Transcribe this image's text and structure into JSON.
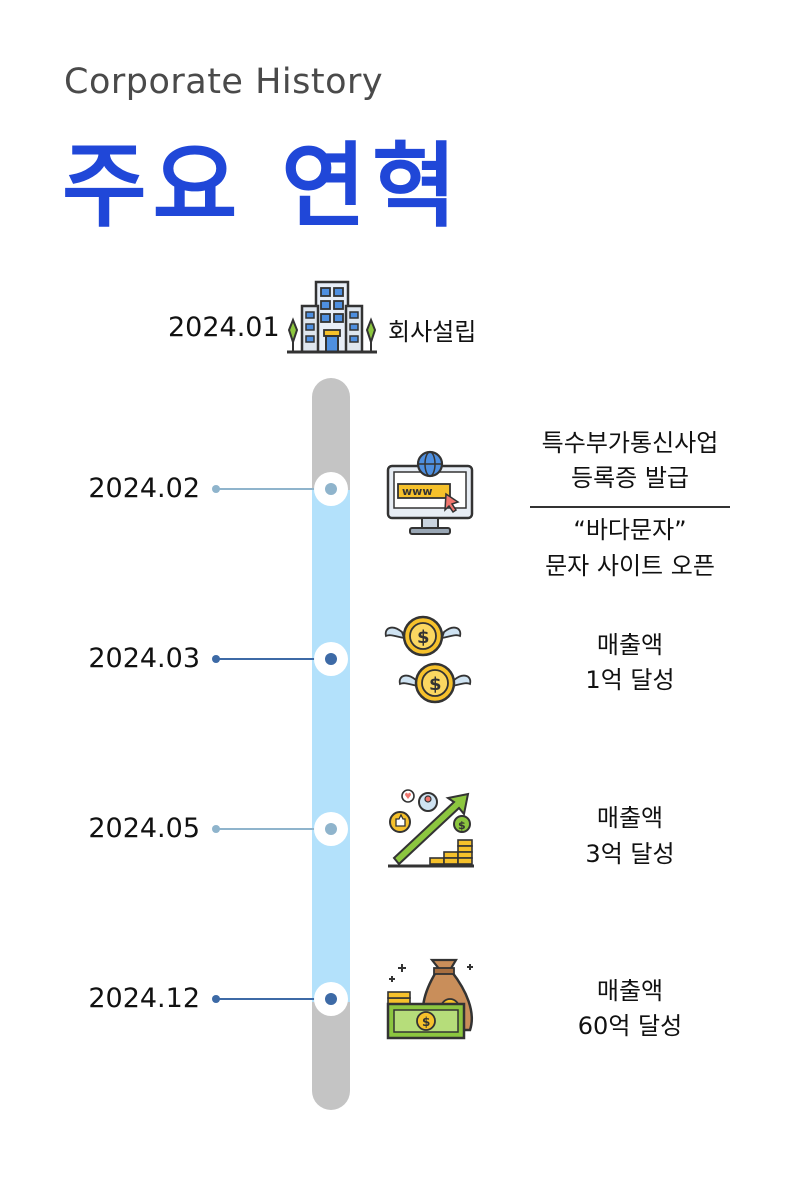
{
  "header": {
    "subtitle": "Corporate History",
    "title": "주요 연혁"
  },
  "founding": {
    "date": "2024.01",
    "label": "회사설립",
    "icon": "office-building-icon"
  },
  "milestones": [
    {
      "date": "2024.02",
      "icon": "www-monitor-icon",
      "lines": [
        "특수부가통신사업",
        "등록증 발급"
      ],
      "lines2": [
        "“바다문자”",
        "문자 사이트 오픈"
      ]
    },
    {
      "date": "2024.03",
      "icon": "flying-coins-icon",
      "lines": [
        "매출액",
        "1억 달성"
      ]
    },
    {
      "date": "2024.05",
      "icon": "growth-chart-icon",
      "lines": [
        "매출액",
        "3억 달성"
      ]
    },
    {
      "date": "2024.12",
      "icon": "money-bag-icon",
      "lines": [
        "매출액",
        "60억 달성"
      ]
    }
  ],
  "colors": {
    "title": "#2047d8",
    "track": "#c4c4c4",
    "track_fill": "#b3e1fb",
    "dot_light": "#8fb4cc",
    "dot_dark": "#3d6aa6"
  }
}
